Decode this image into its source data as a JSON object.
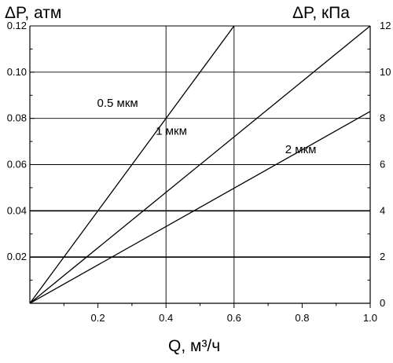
{
  "chart_data": {
    "type": "line",
    "ylabel_left": "ΔP, атм",
    "ylabel_right": "ΔP, кПа",
    "xlabel": "Q, м³/ч",
    "xlim": [
      0,
      1.0
    ],
    "ylim_left": [
      0,
      0.12
    ],
    "ylim_right": [
      0,
      12
    ],
    "x_ticks": [
      "0.2",
      "0.4",
      "0.6",
      "0.8",
      "1.0"
    ],
    "x_tick_values": [
      0.2,
      0.4,
      0.6,
      0.8,
      1.0
    ],
    "y_left_ticks": [
      "0.02",
      "0.04",
      "0.06",
      "0.08",
      "0.10",
      "0.12"
    ],
    "y_left_tick_values": [
      0.02,
      0.04,
      0.06,
      0.08,
      0.1,
      0.12
    ],
    "y_right_ticks": [
      "0",
      "2",
      "4",
      "6",
      "8",
      "10",
      "12"
    ],
    "y_right_tick_values": [
      0,
      2,
      4,
      6,
      8,
      10,
      12
    ],
    "grid": "horizontal lines at 0.02–0.10, vertical lines at Q=0.4 and Q=0.6",
    "series": [
      {
        "name": "0.5 мкм",
        "x": [
          0,
          0.6
        ],
        "y": [
          0,
          0.12
        ],
        "label_at": [
          0.0635,
          0.085
        ]
      },
      {
        "name": "1 мкм",
        "x": [
          0,
          1.0
        ],
        "y": [
          0,
          0.12
        ],
        "label_at": [
          0.37,
          0.073
        ]
      },
      {
        "name": "2 мкм",
        "x": [
          0,
          1.0
        ],
        "y": [
          0,
          0.083
        ],
        "label_at": [
          0.75,
          0.065
        ]
      }
    ]
  }
}
